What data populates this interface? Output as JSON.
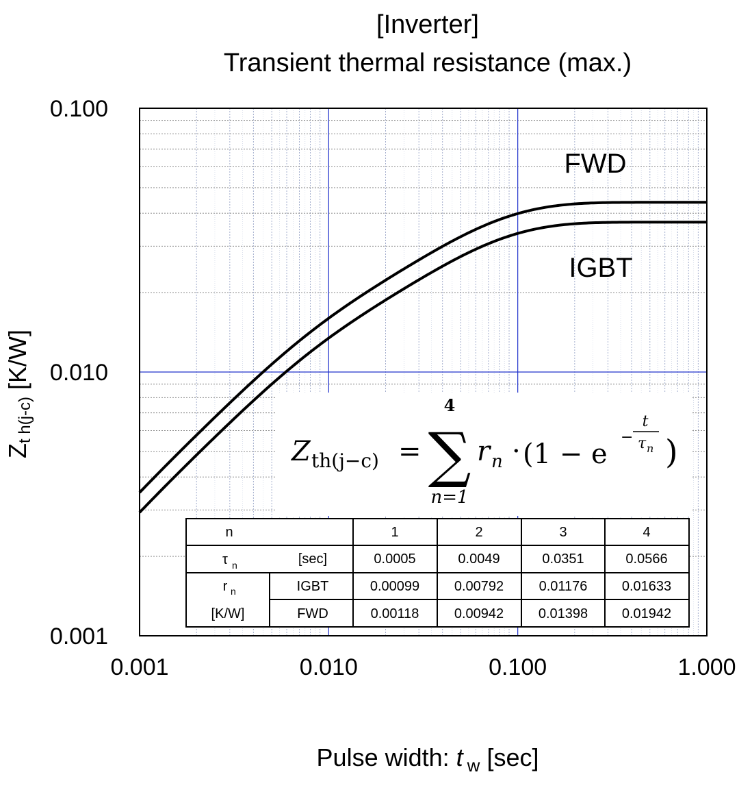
{
  "chart_data": {
    "type": "line",
    "title": "[Inverter]",
    "subtitle": "Transient thermal resistance (max.)",
    "xlabel_text": "Pulse width: ",
    "xlabel_var": "t",
    "xlabel_sub": "w",
    "xlabel_unit": " [sec]",
    "ylabel_var": "Z",
    "ylabel_sub": "t h(j-c)",
    "ylabel_unit": " [K/W]",
    "x_scale": "log",
    "y_scale": "log",
    "xlim": [
      0.001,
      1.0
    ],
    "ylim": [
      0.001,
      0.1
    ],
    "grid": true,
    "x_ticks": [
      {
        "value": 0.001,
        "label": "0.001"
      },
      {
        "value": 0.01,
        "label": "0.010"
      },
      {
        "value": 0.1,
        "label": "0.100"
      },
      {
        "value": 1.0,
        "label": "1.000"
      }
    ],
    "y_ticks": [
      {
        "value": 0.001,
        "label": "0.001"
      },
      {
        "value": 0.01,
        "label": "0.010"
      },
      {
        "value": 0.1,
        "label": "0.100"
      }
    ],
    "series": [
      {
        "name": "FWD",
        "tau": [
          0.0005,
          0.0049,
          0.0351,
          0.0566
        ],
        "r": [
          0.00118,
          0.00942,
          0.01398,
          0.01942
        ]
      },
      {
        "name": "IGBT",
        "tau": [
          0.0005,
          0.0049,
          0.0351,
          0.0566
        ],
        "r": [
          0.00099,
          0.00792,
          0.01176,
          0.01633
        ]
      }
    ],
    "formula": {
      "lhs_var": "Z",
      "lhs_sub": "th(j−c)",
      "equals": "=",
      "sum_symbol": "∑",
      "sum_upper": "4",
      "sum_lower": "n=1",
      "term": "r",
      "term_sub": "n",
      "dot": "·",
      "open": "(1 − e",
      "exp_num": "t",
      "exp_den_var": "τ",
      "exp_den_sub": "n",
      "exp_minus": "−",
      "close": ")"
    },
    "table": {
      "header": [
        "n",
        "1",
        "2",
        "3",
        "4"
      ],
      "tau_row": {
        "label": "τ",
        "label_sub": "n",
        "unit": "[sec]",
        "values": [
          "0.0005",
          "0.0049",
          "0.0351",
          "0.0566"
        ]
      },
      "r_label": "r",
      "r_label_sub": "n",
      "r_unit": "[K/W]",
      "igbt_row": {
        "label": "IGBT",
        "values": [
          "0.00099",
          "0.00792",
          "0.01176",
          "0.01633"
        ]
      },
      "fwd_row": {
        "label": "FWD",
        "values": [
          "0.00118",
          "0.00942",
          "0.01398",
          "0.01942"
        ]
      }
    }
  }
}
